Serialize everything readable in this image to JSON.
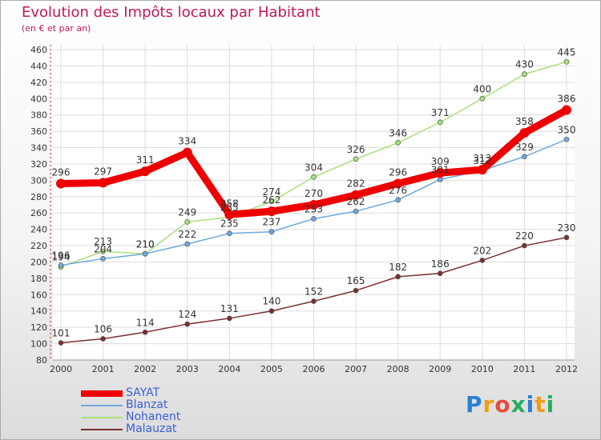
{
  "header": {
    "title": "Evolution des Impôts locaux par Habitant",
    "subtitle": "(en € et par an)"
  },
  "logo": {
    "text": "Proxiti",
    "letter_colors": [
      "#2b7fd4",
      "#f39c12",
      "#e74c3c",
      "#27ae60",
      "#2b7fd4",
      "#f39c12",
      "#27ae60"
    ]
  },
  "chart_data": {
    "type": "line",
    "x": [
      2000,
      2001,
      2002,
      2003,
      2004,
      2005,
      2006,
      2007,
      2008,
      2009,
      2010,
      2011,
      2012
    ],
    "ylim": [
      80,
      460
    ],
    "yticks": [
      80,
      100,
      120,
      140,
      160,
      180,
      200,
      220,
      240,
      260,
      280,
      300,
      320,
      340,
      360,
      380,
      400,
      420,
      440,
      460
    ],
    "grid": true,
    "legend_position": "bottom-left",
    "series": [
      {
        "name": "SAYAT",
        "color": "#ee0000",
        "values": [
          296,
          297,
          311,
          334,
          258,
          262,
          270,
          282,
          296,
          309,
          313,
          358,
          386
        ]
      },
      {
        "name": "Blanzat",
        "color": "#6fa8dc",
        "values": [
          196,
          204,
          210,
          222,
          235,
          237,
          253,
          262,
          276,
          301,
          312,
          329,
          350
        ]
      },
      {
        "name": "Nohanent",
        "color": "#a8e07a",
        "values": [
          194,
          213,
          210,
          249,
          255,
          274,
          304,
          326,
          346,
          371,
          400,
          430,
          445
        ]
      },
      {
        "name": "Malauzat",
        "color": "#7a3030",
        "values": [
          101,
          106,
          114,
          124,
          131,
          140,
          152,
          165,
          182,
          186,
          202,
          220,
          230
        ]
      }
    ]
  }
}
